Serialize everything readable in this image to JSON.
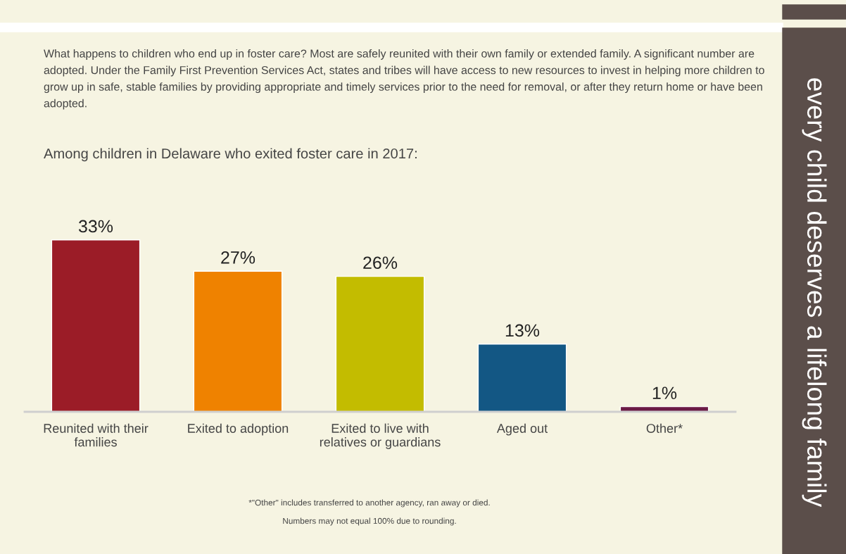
{
  "chart_data": {
    "type": "bar",
    "title": "Among children in Delaware who exited foster care in 2017:",
    "subtitle": "What happens to children who end up in foster care? Most are safely reunited with their own family or extended family. A significant number are adopted. Under the Family First Prevention Services Act, states and tribes will have access to new resources to invest in helping more children to grow up in safe, stable families by providing appropriate and timely services prior to the need for removal, or after they return home or have been adopted.",
    "categories": [
      "Reunited with their families",
      "Exited to adoption",
      "Exited to live with relatives or guardians",
      "Aged out",
      "Other*"
    ],
    "values": [
      33,
      27,
      26,
      13,
      1
    ],
    "colors": [
      "#9b1c27",
      "#ef8200",
      "#c3bc00",
      "#135784",
      "#6b1a45"
    ],
    "value_labels": [
      "33%",
      "27%",
      "26%",
      "13%",
      "1%"
    ],
    "grid": false,
    "legend": false,
    "annotations": [
      "every child deserves a lifelong family",
      "*\"Other\" includes transferred to another agency, ran away or died.",
      "Numbers may not equal 100% due to rounding."
    ]
  }
}
